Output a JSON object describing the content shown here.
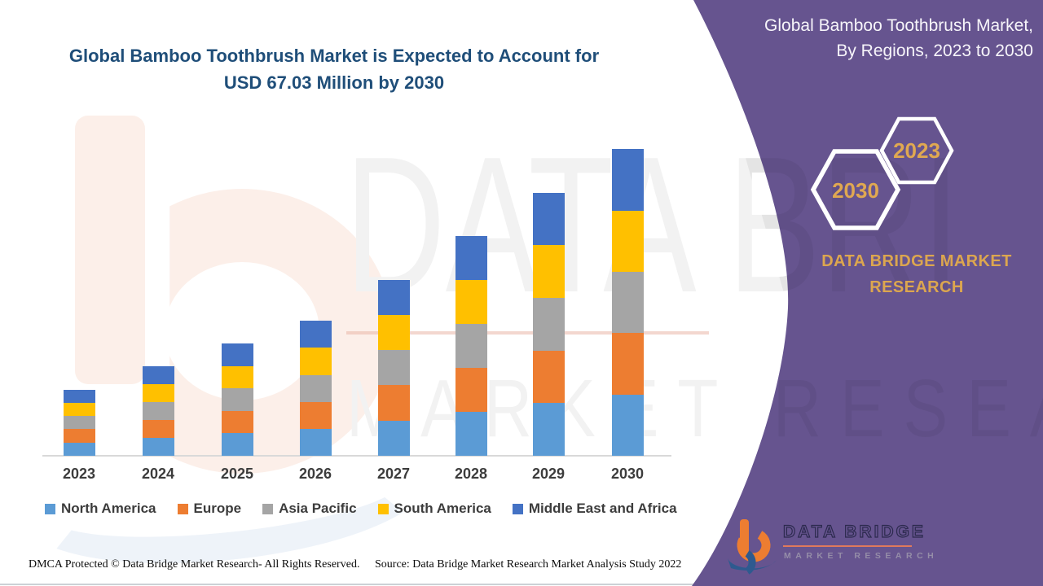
{
  "main_title": {
    "line1": "Global Bamboo Toothbrush Market is Expected to Account for",
    "line2": "USD 67.03 Million by 2030",
    "color": "#1f4e79"
  },
  "side_panel": {
    "title_line1": "Global Bamboo Toothbrush Market,",
    "title_line2": "By Regions, 2023 to 2030",
    "hex_badges": [
      {
        "label": "2030"
      },
      {
        "label": "2023"
      }
    ],
    "brand_line1": "DATA BRIDGE MARKET",
    "brand_line2": "RESEARCH",
    "colors": {
      "background": "#66548f",
      "gold_text": "#e0a851",
      "hex_border": "#ffffff"
    }
  },
  "logo": {
    "name": "DATA BRIDGE",
    "subtitle": "MARKET RESEARCH"
  },
  "watermark": {
    "line1": "DATA BRI",
    "line2": "MARKET RESEARCH"
  },
  "footer": {
    "dmca": "DMCA Protected © Data Bridge Market Research- All Rights Reserved.",
    "source": "Source: Data Bridge Market Research Market Analysis Study 2022"
  },
  "chart_data": {
    "type": "bar",
    "stacked": true,
    "title": "Global Bamboo Toothbrush Market, By Regions, 2023 to 2030",
    "unit": "USD Million",
    "categories": [
      "2023",
      "2024",
      "2025",
      "2026",
      "2027",
      "2028",
      "2029",
      "2030"
    ],
    "series": [
      {
        "name": "North America",
        "color": "#5b9bd5",
        "values": [
          2.9,
          3.9,
          4.9,
          5.9,
          7.7,
          9.6,
          11.5,
          13.4
        ]
      },
      {
        "name": "Europe",
        "color": "#ed7d31",
        "values": [
          2.9,
          3.9,
          4.9,
          5.9,
          7.7,
          9.6,
          11.5,
          13.4
        ]
      },
      {
        "name": "Asia Pacific",
        "color": "#a5a5a5",
        "values": [
          2.9,
          3.9,
          4.9,
          5.9,
          7.7,
          9.6,
          11.5,
          13.4
        ]
      },
      {
        "name": "South America",
        "color": "#ffc000",
        "values": [
          2.9,
          3.9,
          4.9,
          5.9,
          7.7,
          9.6,
          11.5,
          13.4
        ]
      },
      {
        "name": "Middle East and Africa",
        "color": "#4472c4",
        "values": [
          2.9,
          3.9,
          4.9,
          5.9,
          7.7,
          9.6,
          11.5,
          13.4
        ]
      }
    ],
    "totals_estimated": [
      14.5,
      19.5,
      24.5,
      29.5,
      38.5,
      48.0,
      57.5,
      67.03
    ],
    "stated_2030_total": 67.03,
    "xlabel": "",
    "ylabel": "",
    "grid": false,
    "legend_position": "bottom"
  }
}
